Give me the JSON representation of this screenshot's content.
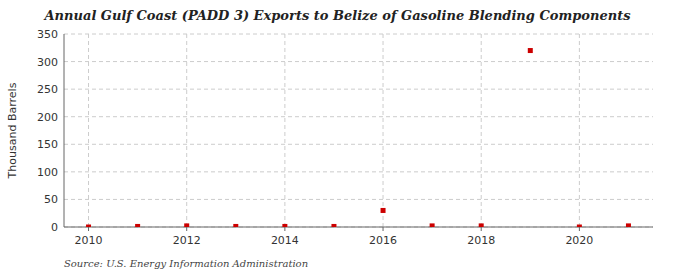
{
  "chart_data": {
    "type": "scatter",
    "title": "Annual Gulf Coast (PADD 3) Exports to Belize of Gasoline Blending Components",
    "ylabel": "Thousand Barrels",
    "annotation": "Source: U.S. Energy Information Administration",
    "x": [
      2010,
      2011,
      2012,
      2013,
      2014,
      2015,
      2016,
      2017,
      2018,
      2019,
      2020,
      2021
    ],
    "values": [
      0,
      1,
      2,
      1,
      1,
      1,
      30,
      2,
      2,
      320,
      0,
      2
    ],
    "color": "#cc0000",
    "marker": "square",
    "xlim": [
      2009.5,
      2021.5
    ],
    "ylim": [
      0,
      350
    ],
    "xticks": [
      2010,
      2012,
      2014,
      2016,
      2018,
      2020
    ],
    "yticks": [
      0,
      50,
      100,
      150,
      200,
      250,
      300,
      350
    ],
    "grid": true
  }
}
